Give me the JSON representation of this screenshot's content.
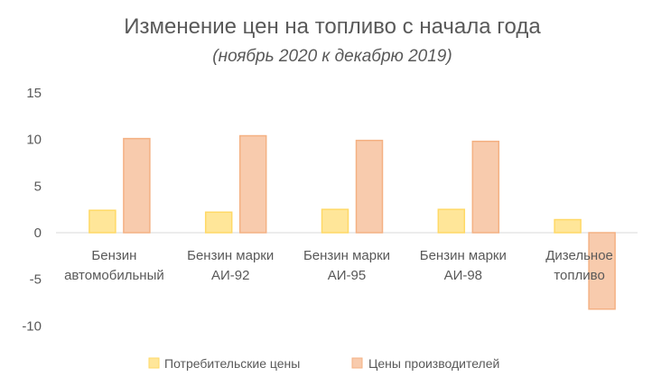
{
  "chart_data": {
    "type": "bar",
    "title": "Изменение цен на топливо с начала года",
    "subtitle": "(ноябрь 2020 к декабрю 2019)",
    "categories": [
      [
        "Бензин",
        "автомобильный"
      ],
      [
        "Бензин марки",
        "АИ-92"
      ],
      [
        "Бензин марки",
        "АИ-95"
      ],
      [
        "Бензин марки",
        "АИ-98"
      ],
      [
        "Дизельное",
        "топливо"
      ]
    ],
    "series": [
      {
        "name": "Потребительские цены",
        "values": [
          2.4,
          2.2,
          2.5,
          2.5,
          1.4
        ],
        "color": "#FFE699",
        "stroke": "#FFD966"
      },
      {
        "name": "Цены производителей",
        "values": [
          10.1,
          10.4,
          9.9,
          9.8,
          -8.2
        ],
        "color": "#F8CBAD",
        "stroke": "#F4B183"
      }
    ],
    "yticks": [
      "15",
      "10",
      "5",
      "0",
      "-5",
      "-10"
    ],
    "ylim": [
      -10,
      15
    ],
    "legend": "bottom",
    "grid": false
  }
}
